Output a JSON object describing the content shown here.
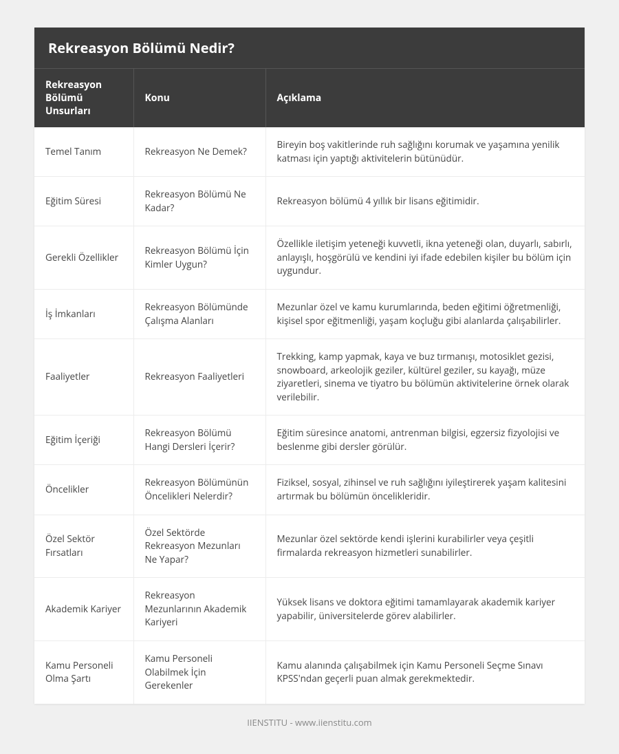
{
  "title": "Rekreasyon Bölümü Nedir?",
  "colors": {
    "page_bg": "#f0f0f0",
    "card_bg": "#ffffff",
    "header_bg": "#3c3c3c",
    "header_text": "#ffffff",
    "cell_text": "#444444",
    "cell_border": "#ececec",
    "footer_text": "#888888"
  },
  "typography": {
    "title_fontsize_pt": 15,
    "header_fontsize_pt": 10.5,
    "cell_fontsize_pt": 10,
    "footer_fontsize_pt": 10
  },
  "table": {
    "type": "table",
    "column_widths_pct": [
      18,
      24,
      58
    ],
    "columns": [
      "Rekreasyon Bölümü Unsurları",
      "Konu",
      "Açıklama"
    ],
    "rows": [
      [
        "Temel Tanım",
        "Rekreasyon Ne Demek?",
        "Bireyin boş vakitlerinde ruh sağlığını korumak ve yaşamına yenilik katması için yaptığı aktivitelerin bütünüdür."
      ],
      [
        "Eğitim Süresi",
        "Rekreasyon Bölümü Ne Kadar?",
        "Rekreasyon bölümü 4 yıllık bir lisans eğitimidir."
      ],
      [
        "Gerekli Özellikler",
        "Rekreasyon Bölümü İçin Kimler Uygun?",
        "Özellikle iletişim yeteneği kuvvetli, ikna yeteneği olan, duyarlı, sabırlı, anlayışlı, hoşgörülü ve kendini iyi ifade edebilen kişiler bu bölüm için uygundur."
      ],
      [
        "İş İmkanları",
        "Rekreasyon Bölümünde Çalışma Alanları",
        "Mezunlar özel ve kamu kurumlarında, beden eğitimi öğretmenliği, kişisel spor eğitmenliği, yaşam koçluğu gibi alanlarda çalışabilirler."
      ],
      [
        "Faaliyetler",
        "Rekreasyon Faaliyetleri",
        "Trekking, kamp yapmak, kaya ve buz tırmanışı, motosiklet gezisi, snowboard, arkeolojik geziler, kültürel geziler, su kayağı, müze ziyaretleri, sinema ve tiyatro bu bölümün aktivitelerine örnek olarak verilebilir."
      ],
      [
        "Eğitim İçeriği",
        "Rekreasyon Bölümü Hangi Dersleri İçerir?",
        "Eğitim süresince anatomi, antrenman bilgisi, egzersiz fizyolojisi ve beslenme gibi dersler görülür."
      ],
      [
        "Öncelikler",
        "Rekreasyon Bölümünün Öncelikleri Nelerdir?",
        "Fiziksel, sosyal, zihinsel ve ruh sağlığını iyileştirerek yaşam kalitesini artırmak bu bölümün öncelikleridir."
      ],
      [
        "Özel Sektör Fırsatları",
        "Özel Sektörde Rekreasyon Mezunları Ne Yapar?",
        "Mezunlar özel sektörde kendi işlerini kurabilirler veya çeşitli firmalarda rekreasyon hizmetleri sunabilirler."
      ],
      [
        "Akademik Kariyer",
        "Rekreasyon Mezunlarının Akademik Kariyeri",
        "Yüksek lisans ve doktora eğitimi tamamlayarak akademik kariyer yapabilir, üniversitelerde görev alabilirler."
      ],
      [
        "Kamu Personeli Olma Şartı",
        "Kamu Personeli Olabilmek İçin Gerekenler",
        "Kamu alanında çalışabilmek için Kamu Personeli Seçme Sınavı KPSS'ndan geçerli puan almak gerekmektedir."
      ]
    ]
  },
  "footer": "IIENSTITU - www.iienstitu.com"
}
